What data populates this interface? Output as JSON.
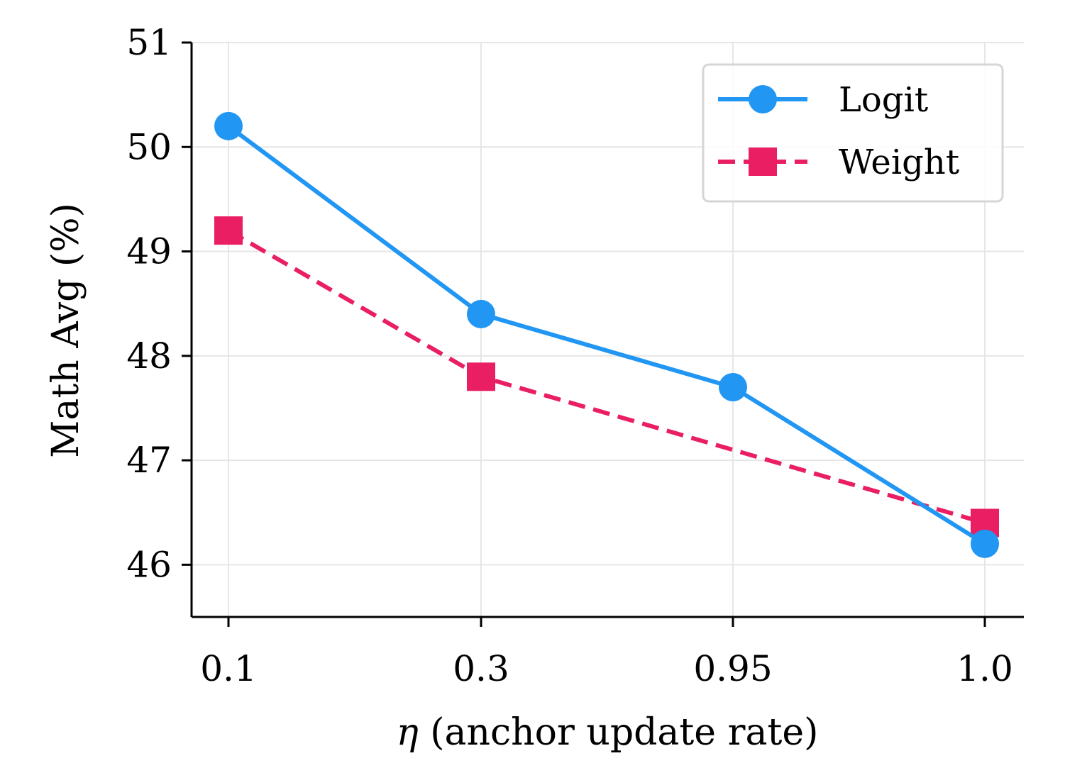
{
  "chart_data": {
    "type": "line",
    "categories": [
      "0.1",
      "0.3",
      "0.95",
      "1.0"
    ],
    "series": [
      {
        "name": "Logit",
        "values": [
          50.2,
          48.4,
          47.7,
          46.2
        ],
        "color": "#2196F3",
        "marker": "circle",
        "line_style": "solid"
      },
      {
        "name": "Weight",
        "values": [
          49.2,
          47.8,
          47.1,
          46.4
        ],
        "color": "#E91E63",
        "marker": "square",
        "line_style": "dashed",
        "marker_visible": [
          true,
          true,
          false,
          true
        ]
      }
    ],
    "title": "",
    "xlabel_symbol": "η",
    "xlabel": " (anchor update rate)",
    "ylabel": "Math Avg (%)",
    "ylim": [
      45.5,
      51
    ],
    "yticks": [
      46,
      47,
      48,
      49,
      50,
      51
    ],
    "grid": true,
    "legend_position": "top-right"
  }
}
